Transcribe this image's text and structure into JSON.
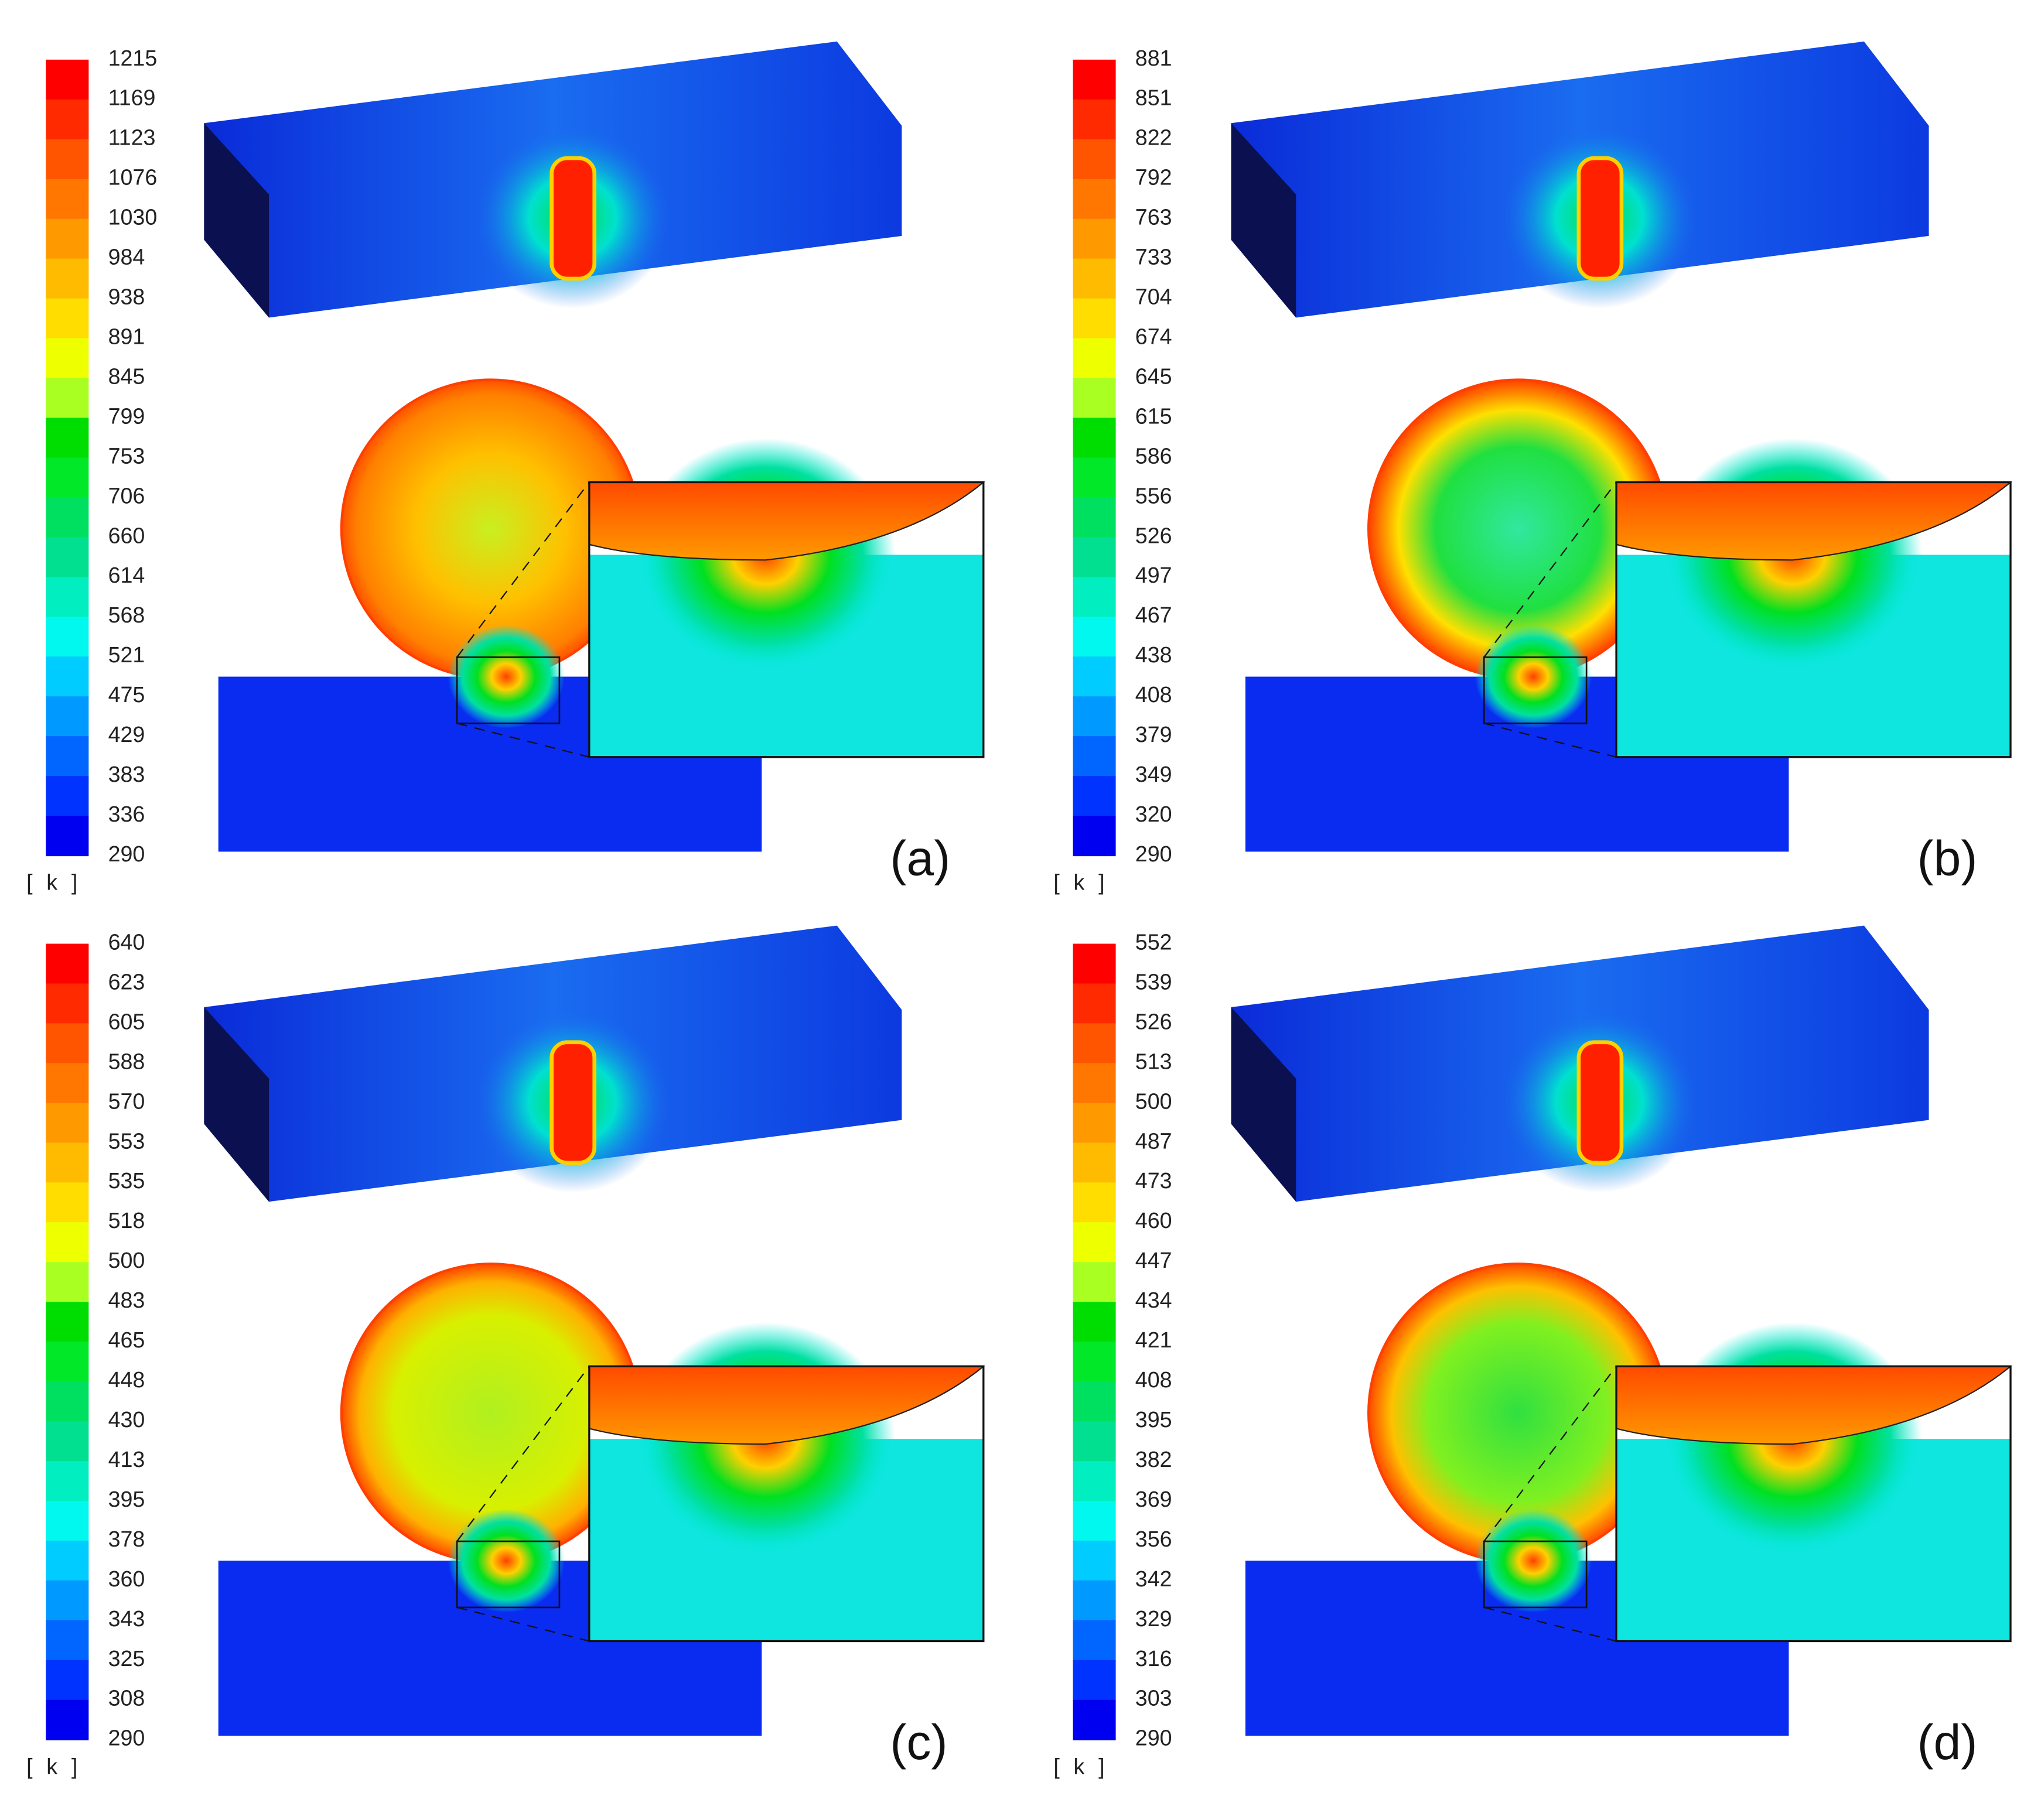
{
  "panels": [
    {
      "label": "(a)",
      "unit": "[ k ]",
      "colorbar_ticks": [
        1215,
        1169,
        1123,
        1076,
        1030,
        984,
        938,
        891,
        845,
        799,
        753,
        706,
        660,
        614,
        568,
        521,
        475,
        429,
        383,
        336,
        290
      ]
    },
    {
      "label": "(b)",
      "unit": "[ k ]",
      "colorbar_ticks": [
        881,
        851,
        822,
        792,
        763,
        733,
        704,
        674,
        645,
        615,
        586,
        556,
        526,
        497,
        467,
        438,
        408,
        379,
        349,
        320,
        290
      ]
    },
    {
      "label": "(c)",
      "unit": "[ k ]",
      "colorbar_ticks": [
        640,
        623,
        605,
        588,
        570,
        553,
        535,
        518,
        500,
        483,
        465,
        448,
        430,
        413,
        395,
        378,
        360,
        343,
        325,
        308,
        290
      ]
    },
    {
      "label": "(d)",
      "unit": "[ k ]",
      "colorbar_ticks": [
        552,
        539,
        526,
        513,
        500,
        487,
        473,
        460,
        447,
        434,
        421,
        408,
        395,
        382,
        369,
        356,
        342,
        329,
        316,
        303,
        290
      ]
    }
  ]
}
